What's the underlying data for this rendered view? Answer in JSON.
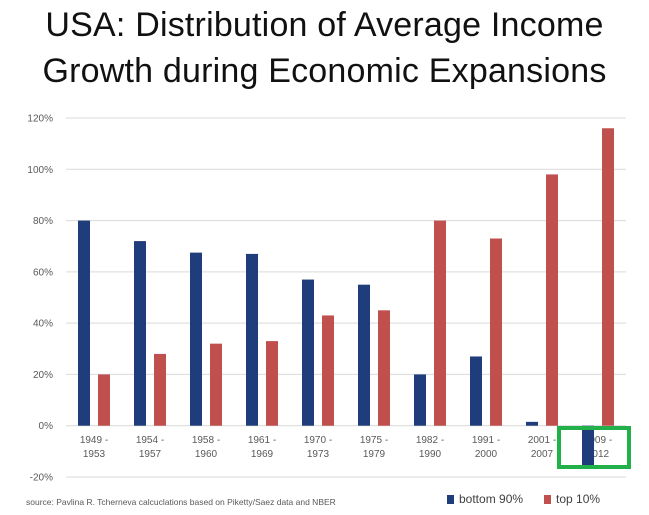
{
  "title": {
    "line1": "USA:  Distribution of Average Income",
    "line2": "Growth during Economic Expansions"
  },
  "source": "source: Pavlina R. Tcherneva calcuclations based on Piketty/Saez data and NBER",
  "colors": {
    "bottom90": "#1f3d7a",
    "top10": "#c0504d",
    "grid": "#d9d9d9",
    "highlight": "#22b04a"
  },
  "chart_data": {
    "type": "bar",
    "title": "",
    "xlabel": "",
    "ylabel": "",
    "ylim": [
      -20,
      120
    ],
    "yticks": [
      "-20%",
      "0%",
      "20%",
      "40%",
      "60%",
      "80%",
      "100%",
      "120%"
    ],
    "grid": true,
    "legend": "bottom-right",
    "categories": [
      [
        "1949 -",
        "1953"
      ],
      [
        "1954 -",
        "1957"
      ],
      [
        "1958 -",
        "1960"
      ],
      [
        "1961 -",
        "1969"
      ],
      [
        "1970 -",
        "1973"
      ],
      [
        "1975 -",
        "1979"
      ],
      [
        "1982 -",
        "1990"
      ],
      [
        "1991 -",
        "2000"
      ],
      [
        "2001 -",
        "2007"
      ],
      [
        "2009 -",
        "2012"
      ]
    ],
    "series": [
      {
        "name": "bottom 90%",
        "values": [
          80,
          72,
          67.5,
          67,
          57,
          55,
          20,
          27,
          1.5,
          -15.5
        ]
      },
      {
        "name": "top 10%",
        "values": [
          20,
          28,
          32,
          33,
          43,
          45,
          80,
          73,
          98,
          116
        ]
      }
    ]
  }
}
